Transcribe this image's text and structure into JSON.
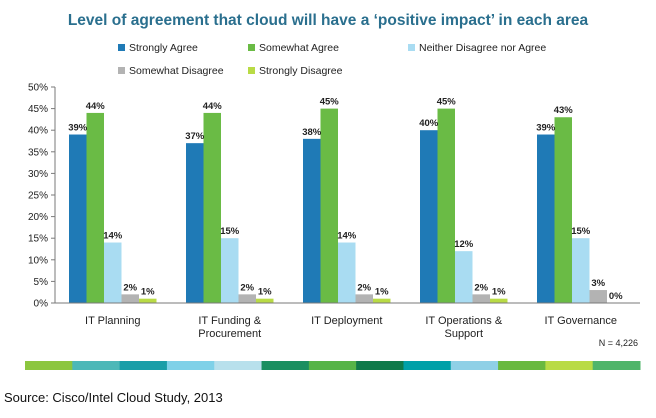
{
  "chart_data": {
    "type": "bar",
    "title": "Level of agreement that cloud will have a ‘positive impact’ in each area",
    "categories": [
      [
        "IT Planning"
      ],
      [
        "IT Funding &",
        "Procurement"
      ],
      [
        "IT Deployment"
      ],
      [
        "IT Operations &",
        "Support"
      ],
      [
        "IT Governance"
      ]
    ],
    "series": [
      {
        "name": "Strongly Agree",
        "color": "#1f7ab6",
        "values": [
          39,
          37,
          38,
          40,
          39
        ]
      },
      {
        "name": "Somewhat Agree",
        "color": "#6abb45",
        "values": [
          44,
          44,
          45,
          45,
          43
        ]
      },
      {
        "name": "Neither Disagree nor Agree",
        "color": "#a9dcf2",
        "values": [
          14,
          15,
          14,
          12,
          15
        ]
      },
      {
        "name": "Somewhat Disagree",
        "color": "#b3b3b3",
        "values": [
          2,
          2,
          2,
          2,
          3
        ]
      },
      {
        "name": "Strongly Disagree",
        "color": "#b9db45",
        "values": [
          1,
          1,
          1,
          1,
          0
        ]
      }
    ],
    "ylim": [
      0,
      50
    ],
    "yticks": [
      "0%",
      "5%",
      "10%",
      "15%",
      "20%",
      "25%",
      "30%",
      "35%",
      "40%",
      "45%",
      "50%"
    ],
    "value_suffix": "%",
    "legend_position": "top",
    "grid": false
  },
  "note": "N = 4,226",
  "source": "Source: Cisco/Intel Cloud Study, 2013",
  "decor_colors": [
    "#8cc63f",
    "#4db8b8",
    "#1a9ea8",
    "#7fd1e8",
    "#b8e0ec",
    "#1a8f60",
    "#56b447",
    "#0f7a4a",
    "#00a0a8",
    "#8fd0e6",
    "#69b93f",
    "#b9db45",
    "#4fb56a"
  ]
}
